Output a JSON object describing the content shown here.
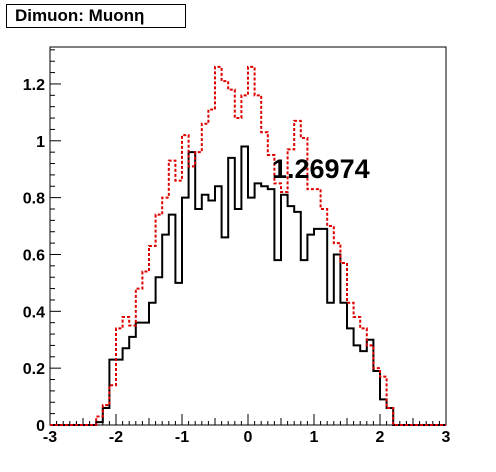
{
  "title": "Dimuon: Muonη",
  "annotation": "1.26974",
  "chart_data": {
    "type": "histogram",
    "xlim": [
      -3,
      3
    ],
    "ylim": [
      0,
      1.33
    ],
    "bin_edges": [
      -3,
      -2.9,
      -2.8,
      -2.7,
      -2.6,
      -2.5,
      -2.4,
      -2.3,
      -2.2,
      -2.1,
      -2.0,
      -1.9,
      -1.8,
      -1.7,
      -1.6,
      -1.5,
      -1.4,
      -1.3,
      -1.2,
      -1.1,
      -1.0,
      -0.9,
      -0.8,
      -0.7,
      -0.6,
      -0.5,
      -0.4,
      -0.3,
      -0.2,
      -0.1,
      0.0,
      0.1,
      0.2,
      0.3,
      0.4,
      0.5,
      0.6,
      0.7,
      0.8,
      0.9,
      1.0,
      1.1,
      1.2,
      1.3,
      1.4,
      1.5,
      1.6,
      1.7,
      1.8,
      1.9,
      2.0,
      2.1,
      2.2,
      2.3,
      2.4,
      2.5,
      2.6,
      2.7,
      2.8,
      2.9,
      3.0
    ],
    "series": [
      {
        "style": "solid",
        "color": "#000000",
        "values": [
          0,
          0,
          0,
          0,
          0,
          0,
          0,
          0.01,
          0.06,
          0.23,
          0.23,
          0.27,
          0.31,
          0.36,
          0.36,
          0.43,
          0.52,
          0.67,
          0.74,
          0.5,
          0.8,
          0.96,
          0.76,
          0.81,
          0.79,
          0.84,
          0.66,
          0.94,
          0.76,
          0.98,
          0.8,
          0.85,
          0.84,
          0.83,
          0.58,
          0.81,
          0.77,
          0.75,
          0.58,
          0.67,
          0.69,
          0.69,
          0.43,
          0.6,
          0.43,
          0.34,
          0.28,
          0.26,
          0.3,
          0.19,
          0.09,
          0.06,
          0,
          0,
          0,
          0,
          0,
          0,
          0,
          0
        ]
      },
      {
        "style": "dashed",
        "color": "#dd0000",
        "values": [
          0,
          0,
          0,
          0,
          0,
          0,
          0,
          0.03,
          0.07,
          0.14,
          0.34,
          0.38,
          0.35,
          0.48,
          0.54,
          0.63,
          0.74,
          0.8,
          0.93,
          0.86,
          1.02,
          0.91,
          0.96,
          1.06,
          1.11,
          1.26,
          1.21,
          1.18,
          1.08,
          1.16,
          1.26,
          1.16,
          1.03,
          0.95,
          0.85,
          0.82,
          0.97,
          1.07,
          1.01,
          0.83,
          0.83,
          0.76,
          0.7,
          0.64,
          0.57,
          0.43,
          0.38,
          0.34,
          0.28,
          0.2,
          0.17,
          0.06,
          0,
          0,
          0,
          0,
          0,
          0,
          0,
          0
        ]
      }
    ],
    "x_ticks": [
      -3,
      -2,
      -1,
      0,
      1,
      2,
      3
    ],
    "y_ticks": [
      0,
      0.2,
      0.4,
      0.6,
      0.8,
      1,
      1.2
    ],
    "x_tick_labels": [
      "-3",
      "-2",
      "-1",
      "0",
      "1",
      "2",
      "3"
    ],
    "y_tick_labels": [
      "0",
      "0.2",
      "0.4",
      "0.6",
      "0.8",
      "1",
      "1.2"
    ]
  }
}
